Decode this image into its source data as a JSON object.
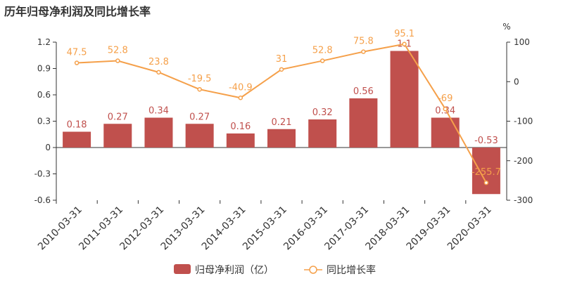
{
  "title": "历年归母净利润及同比增长率",
  "colors": {
    "bar": "#c0504d",
    "line": "#f5a04a",
    "axis": "#333333",
    "grid": "#e0e0e0"
  },
  "chart_data": {
    "type": "bar",
    "title": "历年归母净利润及同比增长率",
    "categories": [
      "2010-03-31",
      "2011-03-31",
      "2012-03-31",
      "2013-03-31",
      "2014-03-31",
      "2015-03-31",
      "2016-03-31",
      "2017-03-31",
      "2018-03-31",
      "2019-03-31",
      "2020-03-31"
    ],
    "series": [
      {
        "name": "归母净利润（亿）",
        "type": "bar",
        "axis": "left",
        "values": [
          0.18,
          0.27,
          0.34,
          0.27,
          0.16,
          0.21,
          0.32,
          0.56,
          1.1,
          0.34,
          -0.53
        ],
        "labels": [
          "0.18",
          "0.27",
          "0.34",
          "0.27",
          "0.16",
          "0.21",
          "0.32",
          "0.56",
          "1.1",
          "0.34",
          "-0.53"
        ]
      },
      {
        "name": "同比增长率",
        "type": "line",
        "axis": "right",
        "values": [
          47.5,
          52.8,
          23.8,
          -19.5,
          -40.9,
          31,
          52.8,
          75.8,
          95.1,
          -69,
          -255.7
        ],
        "labels": [
          "47.5",
          "52.8",
          "23.8",
          "-19.5",
          "-40.9",
          "31",
          "52.8",
          "75.8",
          "95.1",
          "-69",
          "-255.7"
        ]
      }
    ],
    "y_left": {
      "ylim": [
        -0.6,
        1.2
      ],
      "ticks": [
        "-0.6",
        "-0.3",
        "0",
        "0.3",
        "0.6",
        "0.9",
        "1.2"
      ]
    },
    "y_right": {
      "ylim": [
        -300,
        100
      ],
      "ticks": [
        "-300",
        "-200",
        "-100",
        "0",
        "100"
      ],
      "unit": "%"
    },
    "legend": {
      "placement": "bottom"
    },
    "grid": false
  }
}
